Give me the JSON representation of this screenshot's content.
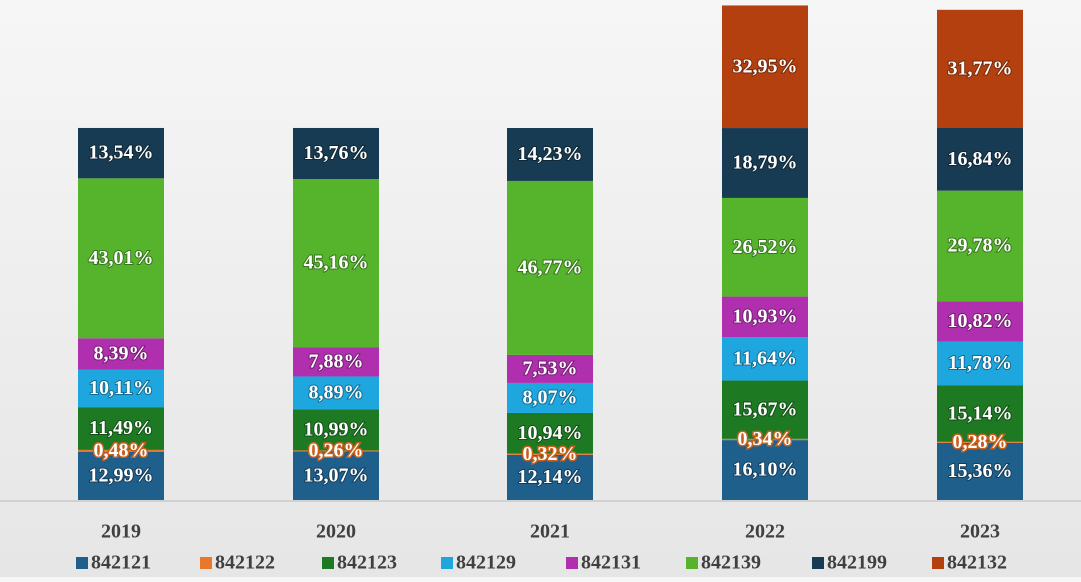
{
  "chart_data": {
    "type": "stacked_bar",
    "categories": [
      "2019",
      "2020",
      "2021",
      "2022",
      "2023"
    ],
    "series": [
      {
        "name": "842121",
        "color": "#1f5f8b",
        "values": [
          12.99,
          13.07,
          12.14,
          16.1,
          15.36
        ],
        "value_labels": [
          "12,99%",
          "13,07%",
          "12,14%",
          "16,10%",
          "15,36%"
        ]
      },
      {
        "name": "842122",
        "color": "#e8792c",
        "values": [
          0.48,
          0.26,
          0.32,
          0.34,
          0.28
        ],
        "value_labels": [
          "0,48%",
          "0,26%",
          "0,32%",
          "0,34%",
          "0,28%"
        ]
      },
      {
        "name": "842123",
        "color": "#1e7a22",
        "values": [
          11.49,
          10.99,
          10.94,
          15.67,
          15.14
        ],
        "value_labels": [
          "11,49%",
          "10,99%",
          "10,94%",
          "15,67%",
          "15,14%"
        ]
      },
      {
        "name": "842129",
        "color": "#1ea6df",
        "values": [
          10.11,
          8.89,
          8.07,
          11.64,
          11.78
        ],
        "value_labels": [
          "10,11%",
          "8,89%",
          "8,07%",
          "11,64%",
          "11,78%"
        ]
      },
      {
        "name": "842131",
        "color": "#b02fae",
        "values": [
          8.39,
          7.88,
          7.53,
          10.93,
          10.82
        ],
        "value_labels": [
          "8,39%",
          "7,88%",
          "7,53%",
          "10,93%",
          "10,82%"
        ]
      },
      {
        "name": "842139",
        "color": "#55b42c",
        "values": [
          43.01,
          45.16,
          46.77,
          26.52,
          29.78
        ],
        "value_labels": [
          "43,01%",
          "45,16%",
          "46,77%",
          "26,52%",
          "29,78%"
        ]
      },
      {
        "name": "842199",
        "color": "#173b52",
        "values": [
          13.54,
          13.76,
          14.23,
          18.79,
          16.84
        ],
        "value_labels": [
          "13,54%",
          "13,76%",
          "14,23%",
          "18,79%",
          "16,84%"
        ]
      },
      {
        "name": "842132",
        "color": "#b4400f",
        "values": [
          null,
          null,
          null,
          32.95,
          31.77
        ],
        "value_labels": [
          null,
          null,
          null,
          "32,95%",
          "31,77%"
        ]
      }
    ]
  }
}
